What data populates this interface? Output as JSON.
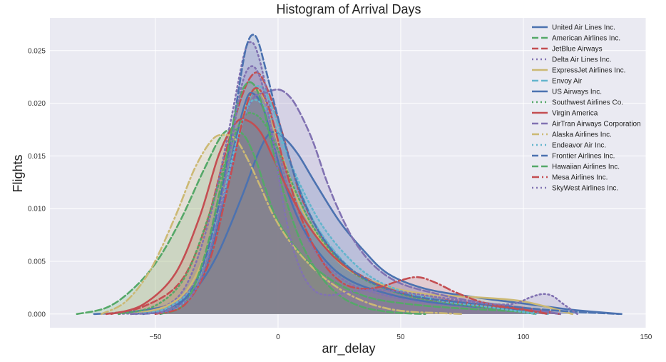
{
  "chart_data": {
    "type": "area",
    "title": "Histogram of Arrival Days",
    "xlabel": "arr_delay",
    "ylabel": "Flights",
    "xlim": [
      -93,
      150
    ],
    "ylim": [
      -0.0013,
      0.0281
    ],
    "x_ticks": [
      -50,
      0,
      50,
      100,
      150
    ],
    "x_tick_labels": [
      "−50",
      "0",
      "50",
      "100",
      "150"
    ],
    "y_ticks": [
      0.0,
      0.005,
      0.01,
      0.015,
      0.02,
      0.025
    ],
    "y_tick_labels": [
      "0.000",
      "0.005",
      "0.010",
      "0.015",
      "0.020",
      "0.025"
    ],
    "grid": true,
    "legend_position": "top-right",
    "series": [
      {
        "name": "United Air Lines Inc.",
        "color": "#4C72B0",
        "dash": "solid",
        "x": [
          -75,
          -60,
          -45,
          -35,
          -25,
          -15,
          -8,
          -3,
          2,
          8,
          15,
          25,
          35,
          45,
          60,
          80,
          100,
          120,
          140
        ],
        "y": [
          0,
          0.0002,
          0.0008,
          0.002,
          0.0055,
          0.011,
          0.0153,
          0.0172,
          0.0168,
          0.0152,
          0.0125,
          0.0088,
          0.006,
          0.0038,
          0.0024,
          0.0016,
          0.001,
          0.0004,
          0
        ]
      },
      {
        "name": "American Airlines Inc.",
        "color": "#55A868",
        "dash": "dash",
        "x": [
          -82,
          -70,
          -60,
          -50,
          -40,
          -30,
          -22,
          -15,
          -10,
          -5,
          0,
          10,
          20,
          30,
          40,
          55,
          70,
          85,
          100,
          105
        ],
        "y": [
          0,
          0.0006,
          0.0022,
          0.0048,
          0.0088,
          0.0138,
          0.0172,
          0.0172,
          0.0152,
          0.0118,
          0.0088,
          0.0055,
          0.0035,
          0.0022,
          0.0014,
          0.0009,
          0.0006,
          0.0004,
          0.0002,
          0
        ]
      },
      {
        "name": "JetBlue Airways",
        "color": "#C44E52",
        "dash": "dash",
        "x": [
          -70,
          -55,
          -40,
          -30,
          -22,
          -15,
          -10,
          -6,
          0,
          5,
          10,
          20,
          30,
          45,
          60,
          80,
          100,
          115
        ],
        "y": [
          0,
          0.0007,
          0.003,
          0.008,
          0.0148,
          0.0205,
          0.0228,
          0.0222,
          0.0185,
          0.0145,
          0.0108,
          0.0066,
          0.0042,
          0.0025,
          0.0016,
          0.001,
          0.0006,
          0
        ]
      },
      {
        "name": "Delta Air Lines Inc.",
        "color": "#8172B2",
        "dash": "dot",
        "x": [
          -65,
          -50,
          -38,
          -28,
          -20,
          -14,
          -11,
          -8,
          -4,
          0,
          5,
          12,
          20,
          30,
          45,
          60,
          80,
          100,
          115
        ],
        "y": [
          0,
          0.0004,
          0.0025,
          0.009,
          0.0175,
          0.0245,
          0.0258,
          0.0245,
          0.0205,
          0.0158,
          0.0112,
          0.0072,
          0.0046,
          0.0028,
          0.0017,
          0.0011,
          0.0007,
          0.0004,
          0
        ]
      },
      {
        "name": "ExpressJet Airlines Inc.",
        "color": "#CCB974",
        "dash": "solid",
        "x": [
          -60,
          -45,
          -35,
          -25,
          -18,
          -12,
          -8,
          -4,
          0,
          5,
          10,
          20,
          30,
          45,
          60,
          80,
          100,
          120
        ],
        "y": [
          0,
          0.0008,
          0.003,
          0.0088,
          0.0155,
          0.0205,
          0.0212,
          0.0195,
          0.0162,
          0.0128,
          0.0098,
          0.0062,
          0.004,
          0.0026,
          0.0019,
          0.0016,
          0.0012,
          0
        ]
      },
      {
        "name": "Envoy Air",
        "color": "#64B5CD",
        "dash": "dash",
        "x": [
          -55,
          -40,
          -30,
          -22,
          -16,
          -11,
          -7,
          -3,
          2,
          8,
          15,
          25,
          35,
          50,
          70,
          90,
          110
        ],
        "y": [
          0,
          0.0008,
          0.004,
          0.0108,
          0.0168,
          0.0208,
          0.0216,
          0.02,
          0.0165,
          0.0124,
          0.0086,
          0.0054,
          0.0034,
          0.0021,
          0.0012,
          0.0006,
          0
        ]
      },
      {
        "name": "US Airways Inc.",
        "color": "#4C72B0",
        "dash": "solid",
        "x": [
          -60,
          -45,
          -32,
          -24,
          -18,
          -13,
          -10,
          -6,
          -2,
          3,
          10,
          20,
          30,
          45,
          60,
          80,
          100,
          115
        ],
        "y": [
          0,
          0.0005,
          0.003,
          0.009,
          0.0158,
          0.0203,
          0.0209,
          0.0195,
          0.0162,
          0.0122,
          0.0082,
          0.0049,
          0.0031,
          0.0019,
          0.0012,
          0.0007,
          0.0004,
          0
        ]
      },
      {
        "name": "Southwest Airlines Co.",
        "color": "#55A868",
        "dash": "dot",
        "x": [
          -65,
          -50,
          -38,
          -28,
          -20,
          -14,
          -9,
          -4,
          2,
          8,
          15,
          25,
          35,
          50,
          65,
          85,
          105
        ],
        "y": [
          0,
          0.0008,
          0.0035,
          0.0095,
          0.0155,
          0.0187,
          0.0189,
          0.0175,
          0.0145,
          0.0112,
          0.008,
          0.0051,
          0.0033,
          0.0019,
          0.0012,
          0.0006,
          0
        ]
      },
      {
        "name": "Virgin America",
        "color": "#C44E52",
        "dash": "solid",
        "x": [
          -68,
          -55,
          -42,
          -32,
          -24,
          -17,
          -12,
          -7,
          -2,
          4,
          12,
          22,
          32,
          45,
          60,
          80,
          100,
          115
        ],
        "y": [
          0,
          0.0009,
          0.0038,
          0.0092,
          0.0152,
          0.0182,
          0.0183,
          0.0172,
          0.0148,
          0.0118,
          0.0085,
          0.0056,
          0.0038,
          0.0024,
          0.0015,
          0.0009,
          0.0005,
          0
        ]
      },
      {
        "name": "AirTran Airways Corporation",
        "color": "#8172B2",
        "dash": "dash",
        "x": [
          -60,
          -45,
          -32,
          -22,
          -15,
          -10,
          -5,
          0,
          4,
          8,
          14,
          20,
          26,
          32,
          40,
          50,
          65,
          80,
          100,
          115
        ],
        "y": [
          0,
          0.0005,
          0.0038,
          0.0112,
          0.0178,
          0.0205,
          0.021,
          0.0213,
          0.0208,
          0.0195,
          0.0165,
          0.0125,
          0.0092,
          0.0066,
          0.0044,
          0.0029,
          0.0019,
          0.0012,
          0.0006,
          0
        ]
      },
      {
        "name": "Alaska Airlines Inc.",
        "color": "#CCB974",
        "dash": "dashdot",
        "x": [
          -72,
          -62,
          -52,
          -42,
          -34,
          -27,
          -22,
          -17,
          -12,
          -7,
          -2,
          5,
          15,
          25,
          35,
          45,
          55,
          65,
          75
        ],
        "y": [
          0,
          0.0012,
          0.0042,
          0.0092,
          0.0138,
          0.0165,
          0.017,
          0.0165,
          0.0145,
          0.012,
          0.0094,
          0.0068,
          0.0042,
          0.0024,
          0.0012,
          0.0005,
          0.0002,
          0.0001,
          0
        ]
      },
      {
        "name": "Endeavor Air Inc.",
        "color": "#64B5CD",
        "dash": "dot",
        "x": [
          -58,
          -45,
          -33,
          -24,
          -17,
          -12,
          -8,
          -3,
          3,
          10,
          18,
          28,
          38,
          50,
          65,
          85,
          105
        ],
        "y": [
          0,
          0.0006,
          0.0032,
          0.0098,
          0.0163,
          0.0198,
          0.0202,
          0.0187,
          0.0155,
          0.0118,
          0.0084,
          0.0055,
          0.0035,
          0.0022,
          0.0013,
          0.0007,
          0
        ]
      },
      {
        "name": "Frontier Airlines Inc.",
        "color": "#4C72B0",
        "dash": "dash",
        "x": [
          -55,
          -42,
          -32,
          -24,
          -18,
          -14,
          -12,
          -10,
          -8,
          -5,
          -1,
          4,
          10,
          18,
          28,
          40,
          55,
          75,
          95,
          115,
          139
        ],
        "y": [
          0,
          0.0006,
          0.0038,
          0.0105,
          0.0185,
          0.0242,
          0.026,
          0.0265,
          0.0258,
          0.0232,
          0.0195,
          0.0152,
          0.011,
          0.0073,
          0.0046,
          0.0028,
          0.0017,
          0.0011,
          0.0007,
          0.0003,
          0
        ]
      },
      {
        "name": "Hawaiian Airlines Inc.",
        "color": "#55A868",
        "dash": "dash",
        "x": [
          -48,
          -38,
          -30,
          -23,
          -18,
          -14,
          -10,
          -6,
          -2,
          3,
          10,
          18,
          26,
          34,
          42,
          50,
          60
        ],
        "y": [
          0,
          0.001,
          0.0055,
          0.0125,
          0.0185,
          0.0215,
          0.0218,
          0.0195,
          0.0155,
          0.011,
          0.0065,
          0.0034,
          0.0016,
          0.0007,
          0.0003,
          0.0001,
          0
        ]
      },
      {
        "name": "Mesa Airlines Inc.",
        "color": "#C44E52",
        "dash": "dashdot",
        "x": [
          -50,
          -38,
          -28,
          -20,
          -14,
          -10,
          -6,
          -2,
          3,
          10,
          18,
          26,
          34,
          42,
          50,
          57,
          64,
          72,
          82,
          92,
          100,
          110
        ],
        "y": [
          0,
          0.0009,
          0.005,
          0.0125,
          0.0188,
          0.0213,
          0.0208,
          0.0182,
          0.0138,
          0.0088,
          0.005,
          0.003,
          0.0024,
          0.0026,
          0.0032,
          0.0035,
          0.003,
          0.0021,
          0.0012,
          0.0007,
          0.0004,
          0
        ]
      },
      {
        "name": "SkyWest Airlines Inc.",
        "color": "#8172B2",
        "dash": "dot",
        "x": [
          -58,
          -45,
          -34,
          -26,
          -20,
          -15,
          -11,
          -7,
          -3,
          1,
          5,
          10,
          15,
          20,
          25,
          32,
          40,
          50,
          65,
          80,
          92,
          98,
          103,
          108,
          112,
          116,
          122
        ],
        "y": [
          0,
          0.0003,
          0.0022,
          0.0075,
          0.0148,
          0.0215,
          0.0235,
          0.0222,
          0.0178,
          0.012,
          0.0072,
          0.0038,
          0.0022,
          0.0018,
          0.0019,
          0.0022,
          0.0023,
          0.0021,
          0.0016,
          0.0011,
          0.0009,
          0.0011,
          0.0016,
          0.0019,
          0.0017,
          0.001,
          0
        ]
      }
    ]
  }
}
